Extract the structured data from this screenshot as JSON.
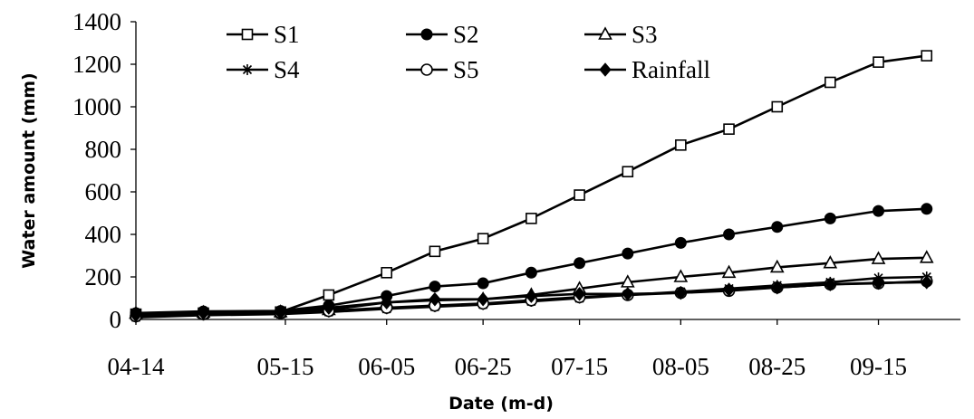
{
  "chart_data": {
    "type": "line",
    "xlabel": "Date (m-d)",
    "ylabel": "Water amount (mm)",
    "ylim": [
      0,
      1400
    ],
    "yticks": [
      0,
      200,
      400,
      600,
      800,
      1000,
      1200,
      1400
    ],
    "xlim": [
      "04-14",
      "10-02"
    ],
    "xticks": [
      "04-14",
      "05-15",
      "06-05",
      "06-25",
      "07-15",
      "08-05",
      "08-25",
      "09-15"
    ],
    "legend_position": "top",
    "grid": false,
    "series": [
      {
        "name": "S1",
        "marker": "square-open",
        "x": [
          "04-14",
          "04-28",
          "05-14",
          "05-24",
          "06-05",
          "06-15",
          "06-25",
          "07-05",
          "07-15",
          "07-25",
          "08-05",
          "08-15",
          "08-25",
          "09-05",
          "09-15",
          "09-25"
        ],
        "values": [
          25,
          30,
          35,
          115,
          220,
          320,
          380,
          475,
          585,
          695,
          820,
          895,
          1000,
          1115,
          1210,
          1240
        ]
      },
      {
        "name": "S2",
        "marker": "circle-filled",
        "x": [
          "04-14",
          "04-28",
          "05-14",
          "05-24",
          "06-05",
          "06-15",
          "06-25",
          "07-05",
          "07-15",
          "07-25",
          "08-05",
          "08-15",
          "08-25",
          "09-05",
          "09-15",
          "09-25"
        ],
        "values": [
          30,
          38,
          40,
          65,
          110,
          155,
          170,
          220,
          265,
          310,
          360,
          400,
          435,
          475,
          510,
          520
        ]
      },
      {
        "name": "S3",
        "marker": "triangle-open",
        "x": [
          "04-14",
          "04-28",
          "05-14",
          "05-24",
          "06-05",
          "06-15",
          "06-25",
          "07-05",
          "07-15",
          "07-25",
          "08-05",
          "08-15",
          "08-25",
          "09-05",
          "09-15",
          "09-25"
        ],
        "values": [
          28,
          33,
          35,
          45,
          80,
          90,
          95,
          115,
          145,
          175,
          200,
          220,
          245,
          265,
          285,
          290
        ]
      },
      {
        "name": "S4",
        "marker": "star",
        "x": [
          "04-14",
          "04-28",
          "05-14",
          "05-24",
          "06-05",
          "06-15",
          "06-25",
          "07-05",
          "07-15",
          "07-25",
          "08-05",
          "08-15",
          "08-25",
          "09-05",
          "09-15",
          "09-25"
        ],
        "values": [
          10,
          20,
          25,
          35,
          50,
          60,
          70,
          85,
          100,
          115,
          130,
          145,
          160,
          175,
          195,
          200
        ]
      },
      {
        "name": "S5",
        "marker": "circle-open",
        "x": [
          "04-14",
          "04-28",
          "05-14",
          "05-24",
          "06-05",
          "06-15",
          "06-25",
          "07-05",
          "07-15",
          "07-25",
          "08-05",
          "08-15",
          "08-25",
          "09-05",
          "09-15",
          "09-25"
        ],
        "values": [
          15,
          25,
          30,
          40,
          55,
          65,
          75,
          90,
          105,
          115,
          125,
          135,
          150,
          165,
          170,
          180
        ]
      },
      {
        "name": "Rainfall",
        "marker": "diamond-filled",
        "x": [
          "04-14",
          "04-28",
          "05-14",
          "05-24",
          "06-05",
          "06-15",
          "06-25",
          "07-05",
          "07-15",
          "07-25",
          "08-05",
          "08-15",
          "08-25",
          "09-05",
          "09-15",
          "09-25"
        ],
        "values": [
          20,
          30,
          32,
          55,
          80,
          95,
          95,
          110,
          120,
          120,
          125,
          140,
          150,
          165,
          172,
          175
        ]
      }
    ]
  }
}
